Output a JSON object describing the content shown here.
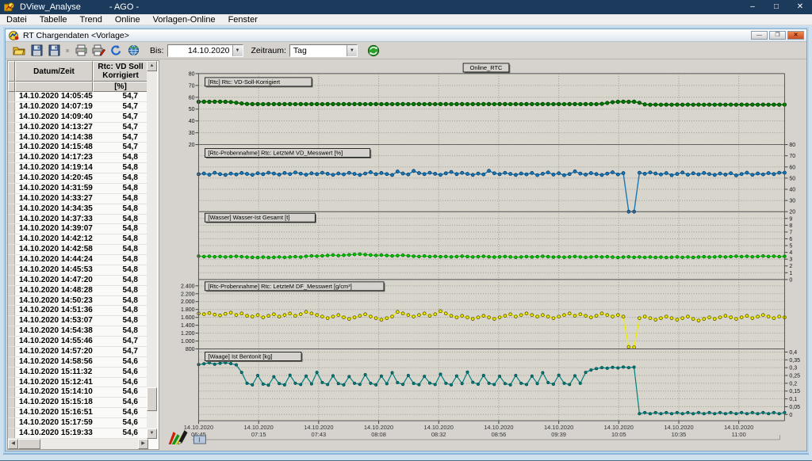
{
  "window": {
    "title": "DView_Analyse",
    "subtitle": "-  AGO  -",
    "minimize": "–",
    "maximize": "□",
    "close": "✕"
  },
  "menu": {
    "items": [
      "Datei",
      "Tabelle",
      "Trend",
      "Online",
      "Vorlagen-Online",
      "Fenster"
    ]
  },
  "child_window": {
    "title": "RT Chargendaten <Vorlage>",
    "minimize": "—",
    "maximize": "❐",
    "close": "✕"
  },
  "toolbar": {
    "icons": [
      "open-folder",
      "save",
      "save-as",
      "print",
      "print-export",
      "refresh",
      "globe",
      "sync-online"
    ],
    "bis_label": "Bis:",
    "date_value": "14.10.2020",
    "zeitraum_label": "Zeitraum:",
    "zeitraum_value": "Tag",
    "dropdown_glyph": "▼"
  },
  "table": {
    "columns": [
      "Datum/Zeit",
      "Rtc: VD Soll Korrigiert"
    ],
    "unit_row": "[%]",
    "rows": [
      [
        "14.10.2020 14:05:45",
        "54,7"
      ],
      [
        "14.10.2020 14:07:19",
        "54,7"
      ],
      [
        "14.10.2020 14:09:40",
        "54,7"
      ],
      [
        "14.10.2020 14:13:27",
        "54,7"
      ],
      [
        "14.10.2020 14:14:38",
        "54,7"
      ],
      [
        "14.10.2020 14:15:48",
        "54,7"
      ],
      [
        "14.10.2020 14:17:23",
        "54,8"
      ],
      [
        "14.10.2020 14:19:14",
        "54,8"
      ],
      [
        "14.10.2020 14:20:45",
        "54,8"
      ],
      [
        "14.10.2020 14:31:59",
        "54,8"
      ],
      [
        "14.10.2020 14:33:27",
        "54,8"
      ],
      [
        "14.10.2020 14:34:35",
        "54,8"
      ],
      [
        "14.10.2020 14:37:33",
        "54,8"
      ],
      [
        "14.10.2020 14:39:07",
        "54,8"
      ],
      [
        "14.10.2020 14:42:12",
        "54,8"
      ],
      [
        "14.10.2020 14:42:58",
        "54,8"
      ],
      [
        "14.10.2020 14:44:24",
        "54,8"
      ],
      [
        "14.10.2020 14:45:53",
        "54,8"
      ],
      [
        "14.10.2020 14:47:20",
        "54,8"
      ],
      [
        "14.10.2020 14:48:28",
        "54,8"
      ],
      [
        "14.10.2020 14:50:23",
        "54,8"
      ],
      [
        "14.10.2020 14:51:36",
        "54,8"
      ],
      [
        "14.10.2020 14:53:07",
        "54,8"
      ],
      [
        "14.10.2020 14:54:38",
        "54,8"
      ],
      [
        "14.10.2020 14:55:46",
        "54,7"
      ],
      [
        "14.10.2020 14:57:20",
        "54,7"
      ],
      [
        "14.10.2020 14:58:56",
        "54,6"
      ],
      [
        "14.10.2020 15:11:32",
        "54,6"
      ],
      [
        "14.10.2020 15:12:41",
        "54,6"
      ],
      [
        "14.10.2020 15:14:10",
        "54,6"
      ],
      [
        "14.10.2020 15:15:18",
        "54,6"
      ],
      [
        "14.10.2020 15:16:51",
        "54,6"
      ],
      [
        "14.10.2020 15:17:59",
        "54,6"
      ],
      [
        "14.10.2020 15:19:33",
        "54,6"
      ]
    ]
  },
  "chart_data": {
    "type": "line",
    "title": "Online_RTC",
    "grid": true,
    "x_label_date": "14.10.2020",
    "x_labels": [
      "06:45",
      "07:15",
      "07:43",
      "08:08",
      "08:32",
      "08:56",
      "09:39",
      "10:05",
      "10:35",
      "11:00"
    ],
    "series": [
      {
        "name": "vd-soll-korrigiert",
        "label": "[Rtc] Rtc: VD-Soll-Korrigiert",
        "color": "#007a00",
        "edge": "#003c00",
        "axis": "left",
        "axis_range": [
          20,
          80
        ],
        "tick_values": [
          80,
          70,
          60,
          50,
          40,
          30,
          20
        ],
        "tick_labels": [
          "80",
          "70",
          "60",
          "50",
          "40",
          "30",
          "20"
        ],
        "values": [
          56.2,
          56.3,
          56.2,
          56.3,
          56.3,
          56.2,
          56.0,
          55.4,
          54.8,
          54.4,
          54.3,
          54.3,
          54.2,
          54.3,
          54.3,
          54.2,
          54.3,
          54.3,
          54.2,
          54.3,
          54.2,
          54.3,
          54.3,
          54.2,
          54.3,
          54.3,
          54.2,
          54.3,
          54.2,
          54.3,
          54.3,
          54.2,
          54.3,
          54.3,
          54.2,
          54.3,
          54.2,
          54.3,
          54.3,
          54.2,
          54.3,
          54.3,
          54.2,
          54.3,
          54.2,
          54.3,
          54.3,
          54.2,
          54.3,
          54.3,
          54.2,
          54.3,
          54.2,
          54.3,
          54.3,
          54.2,
          54.3,
          54.3,
          54.2,
          54.3,
          54.2,
          54.3,
          54.3,
          54.2,
          54.3,
          54.3,
          54.2,
          54.3,
          54.2,
          54.3,
          54.3,
          54.2,
          54.3,
          54.3,
          54.2,
          54.5,
          55.2,
          55.9,
          56.2,
          56.3,
          56.2,
          56.3,
          55.4,
          54.0,
          53.7,
          53.8,
          53.7,
          53.8,
          53.7,
          53.8,
          53.7,
          53.8,
          53.7,
          53.8,
          53.7,
          53.8,
          53.7,
          53.8,
          53.7,
          53.8,
          53.7,
          53.8,
          53.7,
          53.8,
          53.7,
          53.8,
          53.7,
          53.8,
          53.7,
          53.8
        ]
      },
      {
        "name": "vd-messwert",
        "label": "[Rtc-Probennahme] Rtc: LetzteM VD_Messwert [%]",
        "color": "#1878b8",
        "edge": "#0a3c64",
        "axis": "right",
        "axis_range": [
          20,
          80
        ],
        "tick_values": [
          80,
          70,
          60,
          50,
          40,
          30,
          20
        ],
        "tick_labels": [
          "80",
          "70",
          "60",
          "50",
          "40",
          "30",
          "20"
        ],
        "values": [
          53.5,
          54.2,
          53.1,
          54.8,
          53.6,
          52.9,
          54.1,
          53.3,
          54.6,
          53.8,
          53.0,
          54.4,
          53.5,
          54.9,
          54.1,
          53.2,
          54.6,
          53.7,
          55.1,
          54.0,
          53.1,
          54.3,
          53.6,
          54.8,
          53.9,
          53.0,
          54.2,
          53.4,
          54.7,
          53.8,
          52.9,
          54.1,
          55.3,
          53.5,
          54.6,
          53.7,
          52.8,
          55.9,
          54.2,
          53.3,
          56.4,
          54.5,
          53.6,
          54.8,
          53.9,
          53.0,
          54.3,
          55.5,
          53.6,
          54.7,
          53.8,
          52.9,
          54.1,
          53.3,
          56.6,
          54.4,
          53.5,
          54.7,
          53.8,
          52.9,
          54.2,
          53.4,
          54.6,
          52.7,
          53.9,
          55.1,
          53.2,
          54.4,
          52.6,
          53.7,
          56.0,
          54.1,
          53.2,
          54.5,
          53.6,
          52.8,
          54.0,
          55.2,
          53.3,
          54.5,
          20.0,
          20.0,
          54.8,
          53.9,
          55.1,
          54.2,
          53.3,
          54.5,
          52.6,
          53.8,
          55.0,
          53.1,
          54.3,
          53.4,
          54.6,
          53.7,
          52.9,
          54.1,
          53.2,
          54.4,
          52.5,
          53.7,
          54.9,
          53.0,
          54.2,
          53.3,
          54.5,
          53.6,
          54.8,
          54.9
        ]
      },
      {
        "name": "wasser-ist-gesamt",
        "label": "[Wasser] Wasser-Ist Gesamt [t]",
        "color": "#00cc00",
        "edge": "#006600",
        "axis": "right",
        "axis_range": [
          0,
          9
        ],
        "tick_values": [
          9,
          8,
          7,
          6,
          5,
          4,
          3,
          2,
          1,
          0
        ],
        "tick_labels": [
          "9",
          "8",
          "7",
          "6",
          "5",
          "4",
          "3",
          "2",
          "1",
          "0"
        ],
        "values": [
          3.45,
          3.38,
          3.42,
          3.35,
          3.4,
          3.33,
          3.38,
          3.42,
          3.36,
          3.3,
          3.28,
          3.25,
          3.3,
          3.24,
          3.28,
          3.33,
          3.27,
          3.31,
          3.36,
          3.3,
          3.42,
          3.48,
          3.44,
          3.5,
          3.55,
          3.6,
          3.52,
          3.58,
          3.64,
          3.7,
          3.74,
          3.68,
          3.62,
          3.55,
          3.6,
          3.54,
          3.48,
          3.52,
          3.58,
          3.5,
          3.44,
          3.4,
          3.46,
          3.38,
          3.42,
          3.36,
          3.4,
          3.34,
          3.38,
          3.44,
          3.38,
          3.32,
          3.36,
          3.42,
          3.35,
          3.3,
          3.35,
          3.4,
          3.34,
          3.28,
          3.33,
          3.38,
          3.31,
          3.36,
          3.42,
          3.36,
          3.3,
          3.35,
          3.29,
          3.34,
          3.39,
          3.32,
          3.28,
          3.33,
          3.38,
          3.31,
          3.36,
          3.3,
          3.25,
          3.3,
          3.35,
          3.28,
          3.33,
          3.27,
          3.32,
          3.26,
          3.3,
          3.24,
          3.29,
          3.34,
          3.27,
          3.32,
          3.26,
          3.31,
          3.36,
          3.3,
          3.34,
          3.4,
          3.33,
          3.38,
          3.44,
          3.37,
          3.42,
          3.35,
          3.4,
          3.46,
          3.39,
          3.44,
          3.37,
          3.42
        ]
      },
      {
        "name": "df-messwert",
        "label": "[Rtc-Probennahme] Rtc: LetzteM DF_Messwert [g/cm³]",
        "color": "#f0ec00",
        "edge": "#5a5600",
        "axis": "left",
        "axis_range": [
          800,
          2400
        ],
        "tick_values": [
          2400,
          2200,
          2000,
          1800,
          1600,
          1400,
          1200,
          1000,
          800
        ],
        "tick_labels": [
          "2.400",
          "2.200",
          "2.000",
          "1.800",
          "1.600",
          "1.400",
          "1.200",
          "1.000",
          "800"
        ],
        "values": [
          1700,
          1680,
          1710,
          1670,
          1650,
          1690,
          1720,
          1660,
          1700,
          1640,
          1620,
          1660,
          1600,
          1640,
          1680,
          1620,
          1660,
          1700,
          1640,
          1680,
          1740,
          1700,
          1660,
          1620,
          1580,
          1620,
          1660,
          1600,
          1560,
          1600,
          1640,
          1680,
          1620,
          1580,
          1540,
          1580,
          1620,
          1740,
          1700,
          1660,
          1620,
          1660,
          1700,
          1640,
          1680,
          1760,
          1700,
          1640,
          1600,
          1640,
          1600,
          1560,
          1600,
          1640,
          1600,
          1560,
          1600,
          1640,
          1680,
          1620,
          1660,
          1700,
          1660,
          1620,
          1660,
          1620,
          1580,
          1620,
          1660,
          1700,
          1640,
          1680,
          1640,
          1600,
          1640,
          1700,
          1660,
          1620,
          1660,
          1620,
          850,
          840,
          1580,
          1620,
          1580,
          1540,
          1580,
          1620,
          1580,
          1540,
          1580,
          1620,
          1560,
          1520,
          1560,
          1600,
          1560,
          1600,
          1640,
          1600,
          1560,
          1600,
          1640,
          1580,
          1620,
          1660,
          1620,
          1580,
          1620,
          1600
        ]
      },
      {
        "name": "ist-bentonit",
        "label": "[Waage] Ist Bentonit  [kg]",
        "color": "#008080",
        "edge": "#004d4d",
        "axis": "right",
        "axis_range": [
          0,
          0.4
        ],
        "tick_values": [
          0.4,
          0.35,
          0.3,
          0.25,
          0.2,
          0.15,
          0.1,
          0.05,
          0
        ],
        "tick_labels": [
          "0,4",
          "0,35",
          "0,3",
          "0,25",
          "0,2",
          "0,15",
          "0,1",
          "0,05",
          "0"
        ],
        "values": [
          0.32,
          0.325,
          0.331,
          0.322,
          0.328,
          0.332,
          0.326,
          0.318,
          0.27,
          0.2,
          0.19,
          0.25,
          0.195,
          0.188,
          0.242,
          0.198,
          0.19,
          0.252,
          0.2,
          0.192,
          0.246,
          0.196,
          0.27,
          0.205,
          0.192,
          0.248,
          0.198,
          0.19,
          0.243,
          0.2,
          0.193,
          0.255,
          0.2,
          0.19,
          0.246,
          0.197,
          0.268,
          0.204,
          0.193,
          0.25,
          0.199,
          0.191,
          0.244,
          0.201,
          0.192,
          0.258,
          0.2,
          0.19,
          0.247,
          0.198,
          0.272,
          0.206,
          0.194,
          0.25,
          0.2,
          0.192,
          0.245,
          0.198,
          0.19,
          0.25,
          0.2,
          0.192,
          0.246,
          0.198,
          0.268,
          0.204,
          0.194,
          0.252,
          0.2,
          0.192,
          0.248,
          0.2,
          0.27,
          0.285,
          0.294,
          0.3,
          0.296,
          0.302,
          0.298,
          0.304,
          0.3,
          0.303,
          0.005,
          0.012,
          0.005,
          0.012,
          0.005,
          0.012,
          0.005,
          0.012,
          0.005,
          0.012,
          0.005,
          0.012,
          0.005,
          0.012,
          0.005,
          0.012,
          0.005,
          0.012,
          0.005,
          0.012,
          0.005,
          0.012,
          0.005,
          0.012,
          0.005,
          0.012,
          0.005,
          0.012
        ]
      }
    ]
  }
}
